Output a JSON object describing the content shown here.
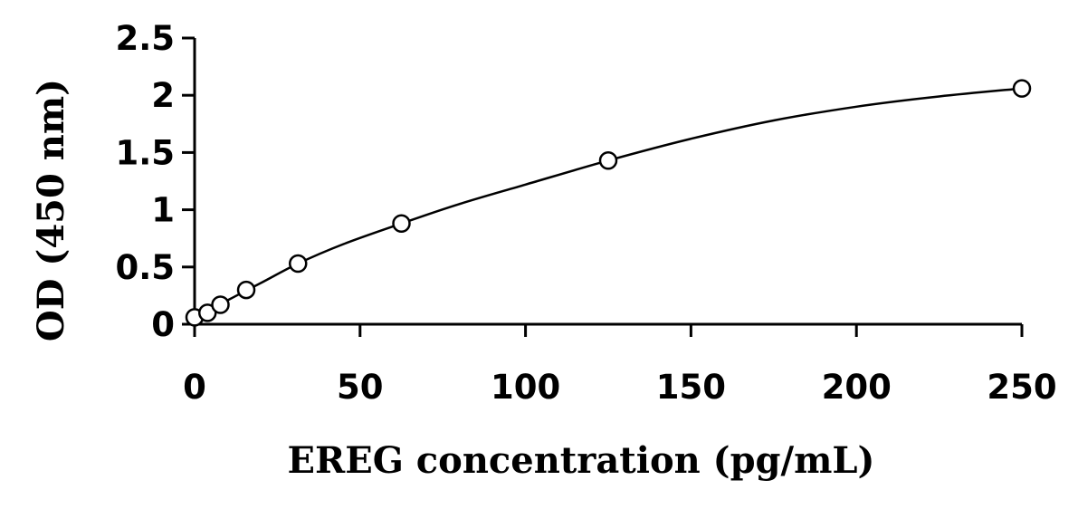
{
  "chart_data": {
    "type": "scatter",
    "title": "",
    "xlabel": "EREG concentration (pg/mL)",
    "ylabel": "OD (450 nm)",
    "xlim": [
      0,
      250
    ],
    "ylim": [
      0,
      2.5
    ],
    "x_ticks": [
      0,
      50,
      100,
      150,
      200,
      250
    ],
    "y_ticks": [
      0,
      0.5,
      1,
      1.5,
      2,
      2.5
    ],
    "x_tick_labels": [
      "0",
      "50",
      "100",
      "150",
      "200",
      "250"
    ],
    "y_tick_labels": [
      "0",
      "0.5",
      "1",
      "1.5",
      "2",
      "2.5"
    ],
    "grid": false,
    "legend": "none",
    "series": [
      {
        "marker": "open-circle",
        "points": [
          {
            "x": 0,
            "y": 0.06
          },
          {
            "x": 3.9,
            "y": 0.1
          },
          {
            "x": 7.8,
            "y": 0.17
          },
          {
            "x": 15.6,
            "y": 0.3
          },
          {
            "x": 31.25,
            "y": 0.53
          },
          {
            "x": 62.5,
            "y": 0.88
          },
          {
            "x": 125,
            "y": 1.43
          },
          {
            "x": 250,
            "y": 2.06
          }
        ]
      }
    ],
    "fit_curve": {
      "style": "smooth solid line",
      "points": [
        {
          "x": 0,
          "y": 0.06
        },
        {
          "x": 10,
          "y": 0.21
        },
        {
          "x": 20,
          "y": 0.36
        },
        {
          "x": 31.25,
          "y": 0.53
        },
        {
          "x": 45,
          "y": 0.7
        },
        {
          "x": 62.5,
          "y": 0.88
        },
        {
          "x": 80,
          "y": 1.05
        },
        {
          "x": 100,
          "y": 1.22
        },
        {
          "x": 125,
          "y": 1.43
        },
        {
          "x": 150,
          "y": 1.62
        },
        {
          "x": 175,
          "y": 1.78
        },
        {
          "x": 200,
          "y": 1.9
        },
        {
          "x": 225,
          "y": 1.99
        },
        {
          "x": 250,
          "y": 2.06
        }
      ]
    },
    "colors": {
      "axis": "#000000",
      "marker": "#000000",
      "curve": "#000000",
      "background": "#ffffff"
    }
  }
}
